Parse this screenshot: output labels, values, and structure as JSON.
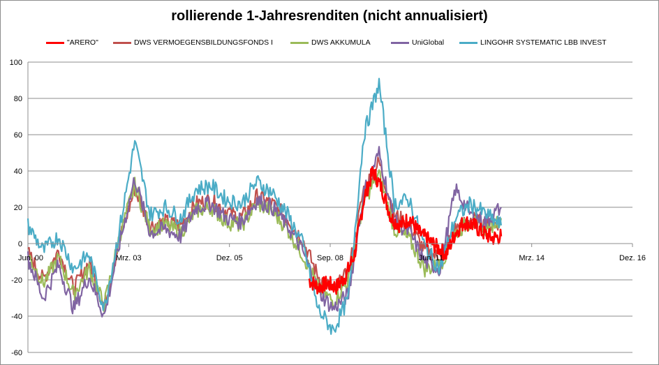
{
  "chart_data": {
    "type": "line",
    "title": "rollierende 1-Jahresrenditen (nicht annualisiert)",
    "xlabel": "",
    "ylabel": "",
    "ylim": [
      -60,
      100
    ],
    "yticks": [
      -60,
      -40,
      -20,
      0,
      20,
      40,
      60,
      80,
      100
    ],
    "xlim": [
      "2000-06",
      "2016-12"
    ],
    "xticks": [
      {
        "label": "Jun. 00",
        "date": "2000-06"
      },
      {
        "label": "Mrz. 03",
        "date": "2003-03"
      },
      {
        "label": "Dez. 05",
        "date": "2005-12"
      },
      {
        "label": "Sep. 08",
        "date": "2008-09"
      },
      {
        "label": "Jun. 11",
        "date": "2011-06"
      },
      {
        "label": "Mrz. 14",
        "date": "2014-03"
      },
      {
        "label": "Dez. 16",
        "date": "2016-12"
      }
    ],
    "grid": "horizontal",
    "legend_position": "top",
    "series": [
      {
        "name": "\"ARERO\"",
        "color": "#ff0000",
        "start": "2008-02",
        "x": [
          "2008-02",
          "2008-05",
          "2008-08",
          "2008-11",
          "2009-02",
          "2009-05",
          "2009-08",
          "2009-11",
          "2010-02",
          "2010-05",
          "2010-08",
          "2010-11",
          "2011-02",
          "2011-05",
          "2011-08",
          "2011-11",
          "2012-02",
          "2012-05",
          "2012-08",
          "2012-11",
          "2013-02",
          "2013-05"
        ],
        "y": [
          -20,
          -24,
          -22,
          -24,
          -18,
          -6,
          24,
          40,
          30,
          14,
          10,
          14,
          6,
          2,
          -2,
          -6,
          6,
          12,
          10,
          6,
          3,
          4
        ]
      },
      {
        "name": "DWS VERMOEGENSBILDUNGSFONDS  I",
        "color": "#c0504d",
        "x": [
          "2000-06",
          "2000-11",
          "2001-04",
          "2001-09",
          "2002-02",
          "2002-07",
          "2002-12",
          "2003-05",
          "2003-10",
          "2004-03",
          "2004-08",
          "2005-01",
          "2005-06",
          "2005-11",
          "2006-04",
          "2006-09",
          "2007-02",
          "2007-07",
          "2007-12",
          "2008-05",
          "2008-10",
          "2009-03",
          "2009-08",
          "2010-01",
          "2010-06",
          "2010-11",
          "2011-04",
          "2011-09",
          "2012-02",
          "2012-07",
          "2012-12",
          "2013-05"
        ],
        "y": [
          -5,
          -20,
          -4,
          -25,
          -10,
          -35,
          2,
          30,
          10,
          12,
          10,
          22,
          24,
          18,
          14,
          26,
          22,
          14,
          2,
          -18,
          -26,
          -16,
          30,
          45,
          16,
          10,
          -4,
          -8,
          8,
          14,
          10,
          12
        ]
      },
      {
        "name": "DWS AKKUMULA",
        "color": "#9bbb59",
        "x": [
          "2000-06",
          "2000-11",
          "2001-04",
          "2001-09",
          "2002-02",
          "2002-07",
          "2002-12",
          "2003-05",
          "2003-10",
          "2004-03",
          "2004-08",
          "2005-01",
          "2005-06",
          "2005-11",
          "2006-04",
          "2006-09",
          "2007-02",
          "2007-07",
          "2007-12",
          "2008-05",
          "2008-10",
          "2009-03",
          "2009-08",
          "2010-01",
          "2010-06",
          "2010-11",
          "2011-04",
          "2011-09",
          "2012-02",
          "2012-07",
          "2012-12",
          "2013-05"
        ],
        "y": [
          -6,
          -22,
          -8,
          -28,
          -14,
          -34,
          4,
          32,
          8,
          10,
          6,
          18,
          20,
          12,
          10,
          22,
          18,
          8,
          -6,
          -24,
          -32,
          -20,
          24,
          38,
          8,
          2,
          -14,
          -12,
          6,
          12,
          8,
          14
        ]
      },
      {
        "name": "UniGlobal",
        "color": "#8064a2",
        "x": [
          "2000-06",
          "2000-11",
          "2001-04",
          "2001-09",
          "2002-02",
          "2002-07",
          "2002-12",
          "2003-05",
          "2003-10",
          "2004-03",
          "2004-08",
          "2005-01",
          "2005-06",
          "2005-11",
          "2006-04",
          "2006-09",
          "2007-02",
          "2007-07",
          "2007-12",
          "2008-05",
          "2008-10",
          "2009-03",
          "2009-08",
          "2010-01",
          "2010-06",
          "2010-11",
          "2011-04",
          "2011-09",
          "2012-02",
          "2012-07",
          "2012-12",
          "2013-05"
        ],
        "y": [
          -8,
          -30,
          -12,
          -36,
          -18,
          -40,
          0,
          36,
          6,
          8,
          4,
          20,
          22,
          14,
          12,
          24,
          20,
          10,
          -4,
          -26,
          -36,
          -28,
          28,
          50,
          12,
          6,
          -10,
          -14,
          30,
          16,
          12,
          20
        ]
      },
      {
        "name": "LINGOHR SYSTEMATIC  LBB INVEST",
        "color": "#4bacc6",
        "x": [
          "2000-06",
          "2000-11",
          "2001-04",
          "2001-09",
          "2002-02",
          "2002-07",
          "2002-12",
          "2003-05",
          "2003-10",
          "2004-03",
          "2004-08",
          "2005-01",
          "2005-06",
          "2005-11",
          "2006-04",
          "2006-09",
          "2007-02",
          "2007-07",
          "2007-12",
          "2008-05",
          "2008-10",
          "2009-03",
          "2009-08",
          "2010-01",
          "2010-06",
          "2010-11",
          "2011-04",
          "2011-09",
          "2012-02",
          "2012-07",
          "2012-12",
          "2013-05"
        ],
        "y": [
          10,
          -4,
          4,
          -14,
          -6,
          -36,
          8,
          56,
          16,
          20,
          14,
          30,
          32,
          24,
          22,
          34,
          28,
          16,
          0,
          -36,
          -48,
          -30,
          60,
          88,
          22,
          24,
          -2,
          -14,
          14,
          22,
          16,
          10
        ]
      }
    ]
  }
}
